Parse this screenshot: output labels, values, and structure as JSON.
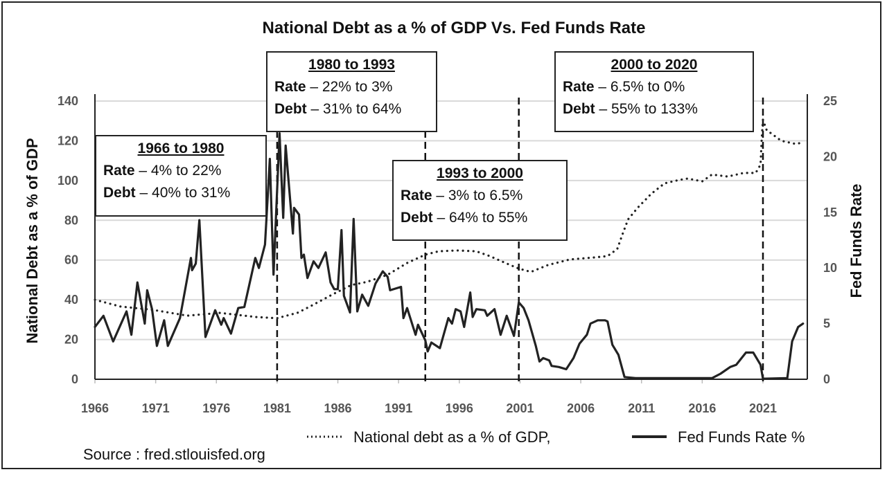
{
  "chart_data": {
    "type": "line",
    "title": "National Debt as a % of GDP  Vs.  Fed Funds Rate",
    "ylabel_left": "National Debt as a % of GDP",
    "ylabel_right": "Fed Funds Rate",
    "xlim": [
      1966,
      2024.7
    ],
    "ylim_left": [
      0,
      140
    ],
    "ylim_right": [
      0,
      25
    ],
    "x_ticks": [
      "1966",
      "1971",
      "1976",
      "1981",
      "1986",
      "1991",
      "1996",
      "2001",
      "2006",
      "2011",
      "2016",
      "2021"
    ],
    "y_ticks_left": [
      "0",
      "20",
      "40",
      "60",
      "80",
      "100",
      "120",
      "140"
    ],
    "y_ticks_right": [
      "0",
      "5",
      "10",
      "15",
      "20",
      "25"
    ],
    "grid": "horizontal",
    "legend_position": "bottom",
    "series": [
      {
        "name": "National debt as a % of GDP,",
        "axis": "left",
        "style": "dotted",
        "color": "#222222",
        "points": [
          [
            1966.0,
            40
          ],
          [
            1968.1,
            36.6
          ],
          [
            1970.7,
            35
          ],
          [
            1973.6,
            32
          ],
          [
            1976.3,
            33.4
          ],
          [
            1979.3,
            31.3
          ],
          [
            1981.0,
            30.7
          ],
          [
            1982.7,
            33.5
          ],
          [
            1983.7,
            36.6
          ],
          [
            1985.6,
            42.8
          ],
          [
            1987.1,
            47.4
          ],
          [
            1988.4,
            49
          ],
          [
            1990.1,
            52.6
          ],
          [
            1991.7,
            58.5
          ],
          [
            1993.2,
            62.7
          ],
          [
            1994.3,
            64.4
          ],
          [
            1995.8,
            64.8
          ],
          [
            1997.4,
            64.4
          ],
          [
            1998.5,
            62
          ],
          [
            1999.8,
            58.5
          ],
          [
            2000.9,
            55.7
          ],
          [
            2001.9,
            54
          ],
          [
            2003.3,
            57.5
          ],
          [
            2005.1,
            60.3
          ],
          [
            2007.1,
            61.3
          ],
          [
            2008.2,
            62
          ],
          [
            2009.0,
            65.5
          ],
          [
            2009.4,
            72.4
          ],
          [
            2009.9,
            80.5
          ],
          [
            2010.7,
            86.4
          ],
          [
            2011.8,
            93.3
          ],
          [
            2012.9,
            98.6
          ],
          [
            2014.1,
            100.3
          ],
          [
            2014.8,
            101
          ],
          [
            2016.0,
            99.6
          ],
          [
            2016.8,
            103
          ],
          [
            2018.1,
            102
          ],
          [
            2019.4,
            103.8
          ],
          [
            2020.4,
            103.8
          ],
          [
            2020.8,
            108
          ],
          [
            2020.9,
            121
          ],
          [
            2021.0,
            130.6
          ],
          [
            2021.3,
            125.4
          ],
          [
            2022.5,
            120
          ],
          [
            2023.7,
            118.4
          ],
          [
            2024.0,
            118.8
          ]
        ]
      },
      {
        "name": "Fed Funds Rate %",
        "axis": "right",
        "style": "solid",
        "color": "#222222",
        "points": [
          [
            1966.0,
            4.7
          ],
          [
            1966.7,
            5.7
          ],
          [
            1967.5,
            3.4
          ],
          [
            1968.6,
            6.1
          ],
          [
            1969.0,
            4.0
          ],
          [
            1969.5,
            8.7
          ],
          [
            1970.1,
            5.0
          ],
          [
            1970.3,
            8.0
          ],
          [
            1970.7,
            6.3
          ],
          [
            1971.1,
            3.0
          ],
          [
            1971.7,
            5.3
          ],
          [
            1972.0,
            3.0
          ],
          [
            1973.0,
            5.5
          ],
          [
            1973.9,
            10.9
          ],
          [
            1974.0,
            9.8
          ],
          [
            1974.3,
            10.4
          ],
          [
            1974.6,
            14.3
          ],
          [
            1975.1,
            3.8
          ],
          [
            1975.9,
            6.2
          ],
          [
            1976.4,
            4.9
          ],
          [
            1976.6,
            5.5
          ],
          [
            1977.2,
            4.1
          ],
          [
            1977.8,
            6.4
          ],
          [
            1978.3,
            6.5
          ],
          [
            1979.2,
            10.9
          ],
          [
            1979.5,
            10.0
          ],
          [
            1980.0,
            12.1
          ],
          [
            1980.4,
            19.8
          ],
          [
            1980.7,
            9.4
          ],
          [
            1981.2,
            22.1
          ],
          [
            1981.5,
            14.5
          ],
          [
            1981.7,
            21.0
          ],
          [
            1982.3,
            13.1
          ],
          [
            1982.4,
            15.4
          ],
          [
            1982.8,
            14.8
          ],
          [
            1983.0,
            10.9
          ],
          [
            1983.2,
            11.2
          ],
          [
            1983.5,
            9.1
          ],
          [
            1984.0,
            10.6
          ],
          [
            1984.4,
            10.0
          ],
          [
            1985.0,
            11.4
          ],
          [
            1985.4,
            8.7
          ],
          [
            1985.7,
            8.1
          ],
          [
            1986.0,
            8.1
          ],
          [
            1986.3,
            13.4
          ],
          [
            1986.5,
            7.5
          ],
          [
            1987.0,
            6.0
          ],
          [
            1987.3,
            14.4
          ],
          [
            1987.6,
            6.1
          ],
          [
            1988.0,
            7.6
          ],
          [
            1988.5,
            6.6
          ],
          [
            1989.1,
            8.6
          ],
          [
            1989.7,
            9.7
          ],
          [
            1990.1,
            9.2
          ],
          [
            1990.3,
            8.0
          ],
          [
            1991.2,
            8.3
          ],
          [
            1991.4,
            5.5
          ],
          [
            1991.7,
            6.4
          ],
          [
            1992.4,
            4.0
          ],
          [
            1992.6,
            4.9
          ],
          [
            1993.2,
            3.5
          ],
          [
            1993.4,
            2.5
          ],
          [
            1993.7,
            3.3
          ],
          [
            1994.4,
            2.8
          ],
          [
            1995.1,
            5.5
          ],
          [
            1995.4,
            5.0
          ],
          [
            1995.7,
            6.3
          ],
          [
            1996.1,
            6.1
          ],
          [
            1996.4,
            4.7
          ],
          [
            1996.9,
            7.8
          ],
          [
            1997.1,
            5.6
          ],
          [
            1997.4,
            6.3
          ],
          [
            1998.1,
            6.2
          ],
          [
            1998.3,
            5.7
          ],
          [
            1998.9,
            6.3
          ],
          [
            1999.4,
            4.0
          ],
          [
            1999.9,
            5.7
          ],
          [
            2000.5,
            3.9
          ],
          [
            2000.9,
            6.9
          ],
          [
            2001.3,
            6.4
          ],
          [
            2001.7,
            5.3
          ],
          [
            2002.3,
            3.0
          ],
          [
            2002.6,
            1.6
          ],
          [
            2002.9,
            1.9
          ],
          [
            2003.4,
            1.7
          ],
          [
            2003.6,
            1.2
          ],
          [
            2004.2,
            1.1
          ],
          [
            2004.8,
            0.9
          ],
          [
            2005.4,
            1.9
          ],
          [
            2005.9,
            3.2
          ],
          [
            2006.5,
            4.0
          ],
          [
            2006.8,
            5.0
          ],
          [
            2007.4,
            5.3
          ],
          [
            2008.0,
            5.3
          ],
          [
            2008.2,
            5.2
          ],
          [
            2008.6,
            3.1
          ],
          [
            2009.1,
            2.2
          ],
          [
            2009.6,
            0.2
          ],
          [
            2010.5,
            0.1
          ],
          [
            2013.0,
            0.1
          ],
          [
            2016.8,
            0.1
          ],
          [
            2017.5,
            0.5
          ],
          [
            2018.3,
            1.1
          ],
          [
            2018.8,
            1.3
          ],
          [
            2019.6,
            2.4
          ],
          [
            2020.2,
            2.4
          ],
          [
            2020.8,
            1.3
          ],
          [
            2021.0,
            0.05
          ],
          [
            2023.0,
            0.1
          ],
          [
            2023.4,
            3.4
          ],
          [
            2023.9,
            4.7
          ],
          [
            2024.3,
            5.0
          ]
        ]
      }
    ],
    "vlines_x": [
      1981.0,
      1993.2,
      2000.9,
      2021.0
    ],
    "annotations": [
      {
        "title": "1966 to 1980",
        "rate_label": "Rate",
        "rate_text": " – 4% to 22%",
        "debt_label": "Debt",
        "debt_text": " – 40% to 31%"
      },
      {
        "title": "1980 to 1993",
        "rate_label": "Rate",
        "rate_text": " – 22% to 3%",
        "debt_label": "Debt",
        "debt_text": " – 31% to 64%"
      },
      {
        "title": "1993 to 2000",
        "rate_label": "Rate",
        "rate_text": " – 3% to 6.5%",
        "debt_label": "Debt",
        "debt_text": " – 64% to 55%"
      },
      {
        "title": "2000 to 2020",
        "rate_label": "Rate",
        "rate_text": " – 6.5% to 0%",
        "debt_label": "Debt",
        "debt_text": " – 55% to 133%"
      }
    ],
    "source": "Source : fred.stlouisfed.org",
    "colors": {
      "line": "#222222",
      "grid": "#d9d9d9",
      "tick": "#555555"
    }
  }
}
